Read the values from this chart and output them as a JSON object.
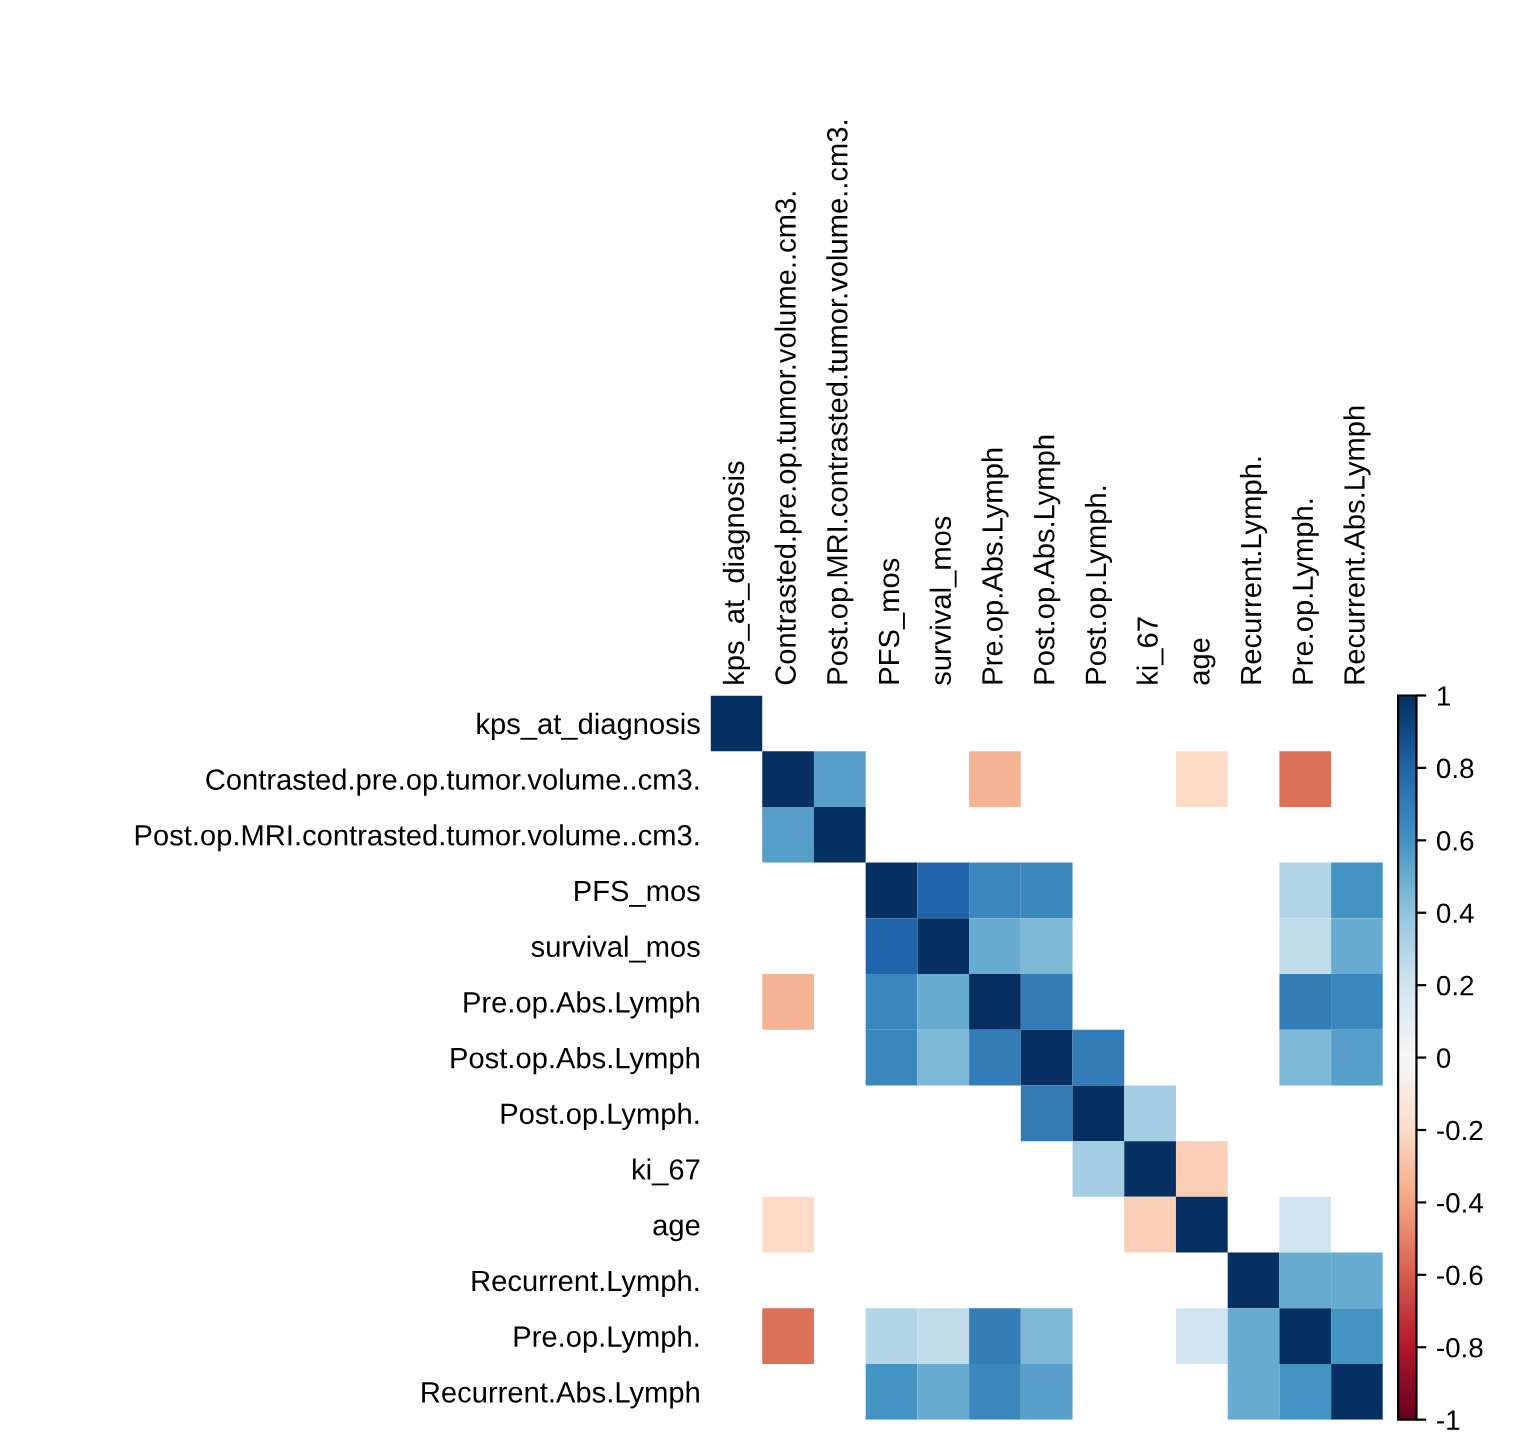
{
  "chart_data": {
    "type": "heatmap",
    "categories": [
      "kps_at_diagnosis",
      "Contrasted.pre.op.tumor.volume..cm3.",
      "Post.op.MRI.contrasted.tumor.volume..cm3.",
      "PFS_mos",
      "survival_mos",
      "Pre.op.Abs.Lymph",
      "Post.op.Abs.Lymph",
      "Post.op.Lymph.",
      "ki_67",
      "age",
      "Recurrent.Lymph.",
      "Pre.op.Lymph.",
      "Recurrent.Abs.Lymph"
    ],
    "y_categories": [
      "kps_at_diagnosis",
      "Contrasted.pre.op.tumor.volume..cm3.",
      "Post.op.MRI.contrasted.tumor.volume..cm3.",
      "PFS_mos",
      "survival_mos",
      "Pre.op.Abs.Lymph",
      "Post.op.Abs.Lymph",
      "Post.op.Lymph.",
      "ki_67",
      "age",
      "Recurrent.Lymph.",
      "Pre.op.Lymph.",
      "Recurrent.Abs.Lymph"
    ],
    "cells": [
      [
        1,
        null,
        null,
        null,
        null,
        null,
        null,
        null,
        null,
        null,
        null,
        null,
        null
      ],
      [
        null,
        1,
        0.55,
        null,
        null,
        -0.35,
        null,
        null,
        null,
        -0.2,
        null,
        -0.55,
        null
      ],
      [
        null,
        0.55,
        1,
        null,
        null,
        null,
        null,
        null,
        null,
        null,
        null,
        null,
        null
      ],
      [
        null,
        null,
        null,
        1,
        0.8,
        0.65,
        0.65,
        null,
        null,
        null,
        null,
        0.3,
        0.6
      ],
      [
        null,
        null,
        null,
        0.8,
        1,
        0.5,
        0.45,
        null,
        null,
        null,
        null,
        0.25,
        0.5
      ],
      [
        null,
        -0.35,
        null,
        0.65,
        0.5,
        1,
        0.7,
        null,
        null,
        null,
        null,
        0.7,
        0.65
      ],
      [
        null,
        null,
        null,
        0.65,
        0.45,
        0.7,
        1,
        0.7,
        null,
        null,
        null,
        0.45,
        0.55
      ],
      [
        null,
        null,
        null,
        null,
        null,
        null,
        0.7,
        1,
        0.35,
        null,
        null,
        null,
        null
      ],
      [
        null,
        null,
        null,
        null,
        null,
        null,
        null,
        0.35,
        1,
        -0.25,
        null,
        null,
        null
      ],
      [
        null,
        -0.2,
        null,
        null,
        null,
        null,
        null,
        null,
        -0.25,
        1,
        null,
        0.2,
        null
      ],
      [
        null,
        null,
        null,
        null,
        null,
        null,
        null,
        null,
        null,
        null,
        1,
        0.5,
        0.5
      ],
      [
        null,
        -0.55,
        null,
        0.3,
        0.25,
        0.7,
        0.45,
        null,
        null,
        0.2,
        0.5,
        1,
        0.6
      ],
      [
        null,
        null,
        null,
        0.6,
        0.5,
        0.65,
        0.55,
        null,
        null,
        null,
        0.5,
        0.6,
        1
      ]
    ],
    "clim": [
      -1,
      1
    ],
    "cticks": [
      -1,
      -0.8,
      -0.6,
      -0.4,
      -0.2,
      0,
      0.2,
      0.4,
      0.6,
      0.8,
      1
    ],
    "grid": false
  }
}
